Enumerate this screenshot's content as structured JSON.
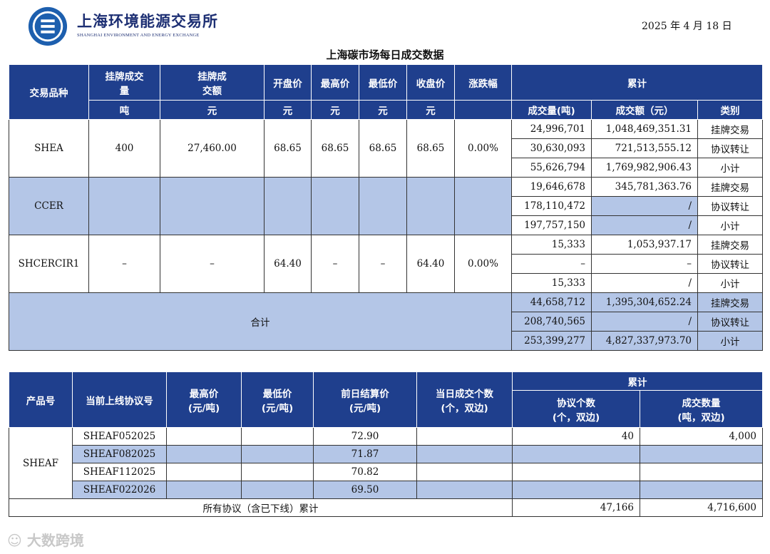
{
  "header": {
    "org_cn": "上海环境能源交易所",
    "org_en": "SHANGHAI ENVIRONMENT AND ENERGY EXCHANGE",
    "date": "2025 年 4 月 18 日",
    "title": "上海碳市场每日成交数据"
  },
  "table1": {
    "headers": {
      "variety": "交易品种",
      "listed_volume": "挂牌成交量",
      "listed_amount": "挂牌成交额",
      "open": "开盘价",
      "high": "最高价",
      "low": "最低价",
      "close": "收盘价",
      "change": "涨跌幅",
      "cumulative": "累计"
    },
    "units": {
      "volume": "吨",
      "amount": "元",
      "open": "元",
      "high": "元",
      "low": "元",
      "close": "元",
      "cum_volume": "成交量(吨)",
      "cum_amount": "成交额（元）",
      "cum_type": "类别"
    },
    "products": [
      {
        "name": "SHEA",
        "volume": "400",
        "amount": "27,460.00",
        "open": "68.65",
        "high": "68.65",
        "low": "68.65",
        "close": "68.65",
        "change": "0.00%",
        "rows": [
          {
            "cum_volume": "24,996,701",
            "cum_amount": "1,048,469,351.31",
            "type": "挂牌交易"
          },
          {
            "cum_volume": "30,630,093",
            "cum_amount": "721,513,555.12",
            "type": "协议转让"
          },
          {
            "cum_volume": "55,626,794",
            "cum_amount": "1,769,982,906.43",
            "type": "小计"
          }
        ]
      },
      {
        "name": "CCER",
        "volume": "",
        "amount": "",
        "open": "",
        "high": "",
        "low": "",
        "close": "",
        "change": "",
        "rows": [
          {
            "cum_volume": "19,646,678",
            "cum_amount": "345,781,363.76",
            "type": "挂牌交易"
          },
          {
            "cum_volume": "178,110,472",
            "cum_amount": "/",
            "type": "协议转让"
          },
          {
            "cum_volume": "197,757,150",
            "cum_amount": "/",
            "type": "小计"
          }
        ]
      },
      {
        "name": "SHCERCIR1",
        "volume": "–",
        "amount": "–",
        "open": "64.40",
        "high": "–",
        "low": "–",
        "close": "64.40",
        "change": "0.00%",
        "rows": [
          {
            "cum_volume": "15,333",
            "cum_amount": "1,053,937.17",
            "type": "挂牌交易"
          },
          {
            "cum_volume": "–",
            "cum_amount": "–",
            "type": "协议转让"
          },
          {
            "cum_volume": "15,333",
            "cum_amount": "/",
            "type": "小计"
          }
        ]
      }
    ],
    "total": {
      "label": "合计",
      "rows": [
        {
          "cum_volume": "44,658,712",
          "cum_amount": "1,395,304,652.24",
          "type": "挂牌交易"
        },
        {
          "cum_volume": "208,740,565",
          "cum_amount": "/",
          "type": "协议转让"
        },
        {
          "cum_volume": "253,399,277",
          "cum_amount": "4,827,337,973.70",
          "type": "小计"
        }
      ]
    }
  },
  "table2": {
    "headers": {
      "product": "产品号",
      "contract": "当前上线协议号",
      "high": "最高价",
      "high_unit": "(元/吨)",
      "low": "最低价",
      "low_unit": "(元/吨)",
      "prev_settle": "前日结算价",
      "prev_settle_unit": "(元/吨)",
      "daily_count": "当日成交个数",
      "daily_count_unit": "(个，双边)",
      "cumulative": "累计",
      "agree_count": "协议个数",
      "agree_count_unit": "(个，双边)",
      "deal_qty": "成交数量",
      "deal_qty_unit": "(吨，双边)"
    },
    "product": "SHEAF",
    "rows": [
      {
        "contract": "SHEAF052025",
        "high": "",
        "low": "",
        "prev_settle": "72.90",
        "daily": "",
        "agree": "40",
        "qty": "4,000"
      },
      {
        "contract": "SHEAF082025",
        "high": "",
        "low": "",
        "prev_settle": "71.87",
        "daily": "",
        "agree": "",
        "qty": ""
      },
      {
        "contract": "SHEAF112025",
        "high": "",
        "low": "",
        "prev_settle": "70.82",
        "daily": "",
        "agree": "",
        "qty": ""
      },
      {
        "contract": "SHEAF022026",
        "high": "",
        "low": "",
        "prev_settle": "69.50",
        "daily": "",
        "agree": "",
        "qty": ""
      }
    ],
    "footer": {
      "label": "所有协议（含已下线）累计",
      "agree": "47,166",
      "qty": "4,716,600"
    }
  },
  "watermark": "大数跨境",
  "colors": {
    "header_blue": "#1f3f8d",
    "light_blue": "#b4c6e7",
    "brand_navy": "#1d2f73"
  }
}
